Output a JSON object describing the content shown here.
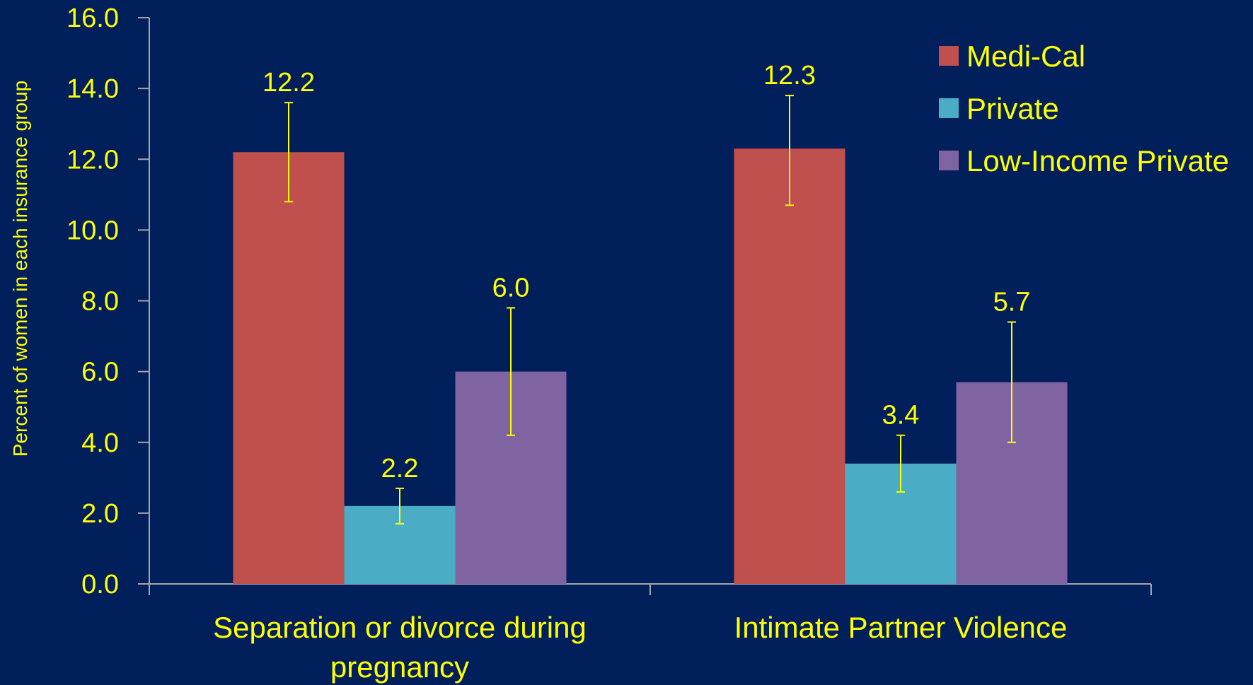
{
  "chart_data": {
    "type": "bar",
    "ylabel": "Percent of women in each insurance group",
    "ylim": [
      0,
      16
    ],
    "ytick_step": 2,
    "ytick_labels": [
      "0.0",
      "2.0",
      "4.0",
      "6.0",
      "8.0",
      "10.0",
      "12.0",
      "14.0",
      "16.0"
    ],
    "categories": [
      [
        "Separation or divorce during",
        "pregnancy"
      ],
      [
        "Intimate Partner Violence"
      ]
    ],
    "series": [
      {
        "name": "Medi-Cal",
        "color": "#c0504d",
        "values": [
          12.2,
          12.3
        ],
        "labels": [
          "12.2",
          "12.3"
        ],
        "error_low": [
          10.8,
          10.7
        ],
        "error_high": [
          13.6,
          13.8
        ]
      },
      {
        "name": "Private",
        "color": "#4bacc6",
        "values": [
          2.2,
          3.4
        ],
        "labels": [
          "2.2",
          "3.4"
        ],
        "error_low": [
          1.7,
          2.6
        ],
        "error_high": [
          2.7,
          4.2
        ]
      },
      {
        "name": "Low-Income Private",
        "color": "#8064a2",
        "values": [
          6.0,
          5.7
        ],
        "labels": [
          "6.0",
          "5.7"
        ],
        "error_low": [
          4.2,
          4.0
        ],
        "error_high": [
          7.8,
          7.4
        ]
      }
    ],
    "legend_position": "top-right",
    "error_bar_color": "#ffff00",
    "axis_color": "#a6a6a6",
    "text_color": "#ffff00",
    "background": "#001f5b",
    "grid": false
  }
}
